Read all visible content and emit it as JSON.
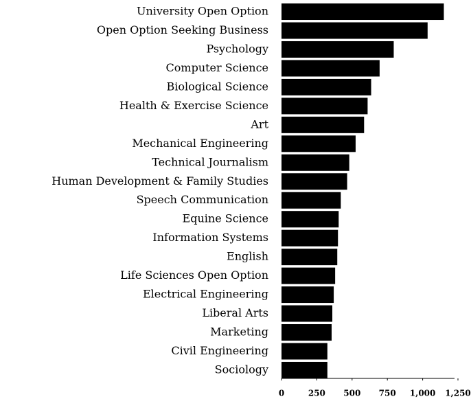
{
  "chart_data": {
    "type": "barh",
    "categories": [
      "University Open Option",
      "Open Option Seeking Business",
      "Psychology",
      "Computer Science",
      "Biological Science",
      "Health & Exercise Science",
      "Art",
      "Mechanical Engineering",
      "Technical Journalism",
      "Human Development & Family Studies",
      "Speech Communication",
      "Equine Science",
      "Information Systems",
      "English",
      "Life Sciences Open Option",
      "Electrical Engineering",
      "Liberal Arts",
      "Marketing",
      "Civil Engineering",
      "Sociology"
    ],
    "values": [
      1150,
      1035,
      795,
      695,
      635,
      610,
      585,
      525,
      480,
      465,
      420,
      405,
      400,
      395,
      380,
      370,
      360,
      355,
      325,
      325
    ],
    "color": "#000000",
    "xlim": [
      0,
      1250
    ],
    "xticks": [
      0,
      250,
      500,
      750,
      {
        "value": 1000,
        "label": "1,000"
      },
      {
        "value": 1250,
        "label": "1,250"
      }
    ]
  }
}
